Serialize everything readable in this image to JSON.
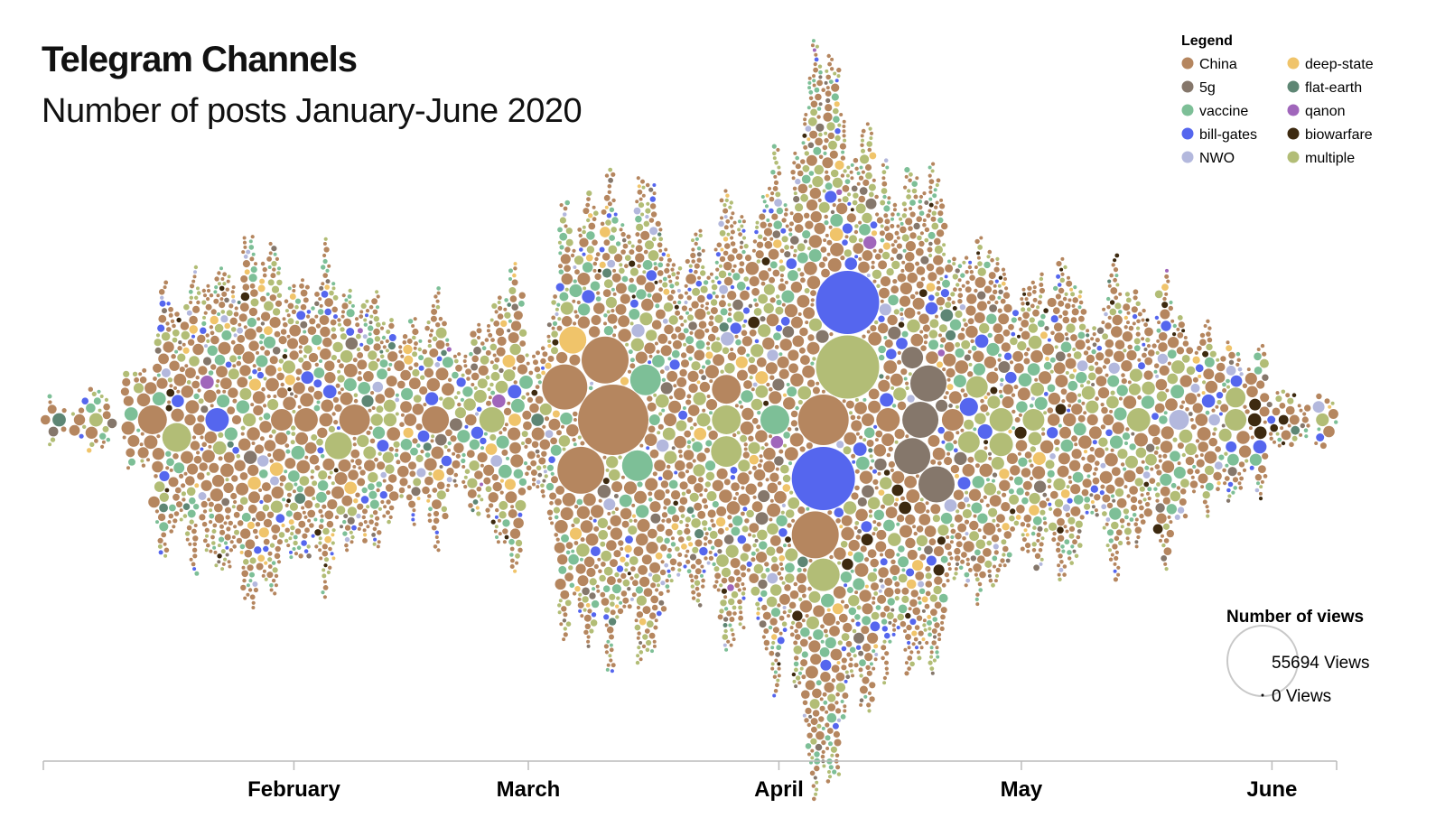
{
  "header": {
    "title": "Telegram Channels",
    "subtitle": "Number of posts January-June 2020"
  },
  "chart_data": {
    "type": "scatter",
    "subtype": "beeswarm",
    "title": "Telegram Channels",
    "subtitle": "Number of posts January-June 2020",
    "x_axis": {
      "type": "date",
      "range": [
        "2020-01-01",
        "2020-06-09"
      ],
      "ticks": [
        {
          "date": "2020-02-01",
          "label": "February"
        },
        {
          "date": "2020-03-01",
          "label": "March"
        },
        {
          "date": "2020-04-01",
          "label": "April"
        },
        {
          "date": "2020-05-01",
          "label": "May"
        },
        {
          "date": "2020-06-01",
          "label": "June"
        }
      ]
    },
    "grid": false,
    "legend": {
      "title": "Legend",
      "placement": "top-right",
      "items": [
        {
          "name": "China",
          "color": "#b5865f"
        },
        {
          "name": "5g",
          "color": "#85776b"
        },
        {
          "name": "vaccine",
          "color": "#7dbf97"
        },
        {
          "name": "bill-gates",
          "color": "#5566ee"
        },
        {
          "name": "NWO",
          "color": "#b3b8dd"
        },
        {
          "name": "deep-state",
          "color": "#f0c46a"
        },
        {
          "name": "flat-earth",
          "color": "#5e8674"
        },
        {
          "name": "qanon",
          "color": "#a066bb"
        },
        {
          "name": "biowarfare",
          "color": "#3d2a10"
        },
        {
          "name": "multiple",
          "color": "#b2bd76"
        }
      ]
    },
    "size_legend": {
      "title": "Number of views",
      "max_views": 55694,
      "max_label": "55694 Views",
      "min_views": 0,
      "min_label": "0 Views"
    },
    "large_posts": [
      [
        "2020-03-11",
        55694,
        "China"
      ],
      [
        "2020-04-06",
        28700,
        "China"
      ],
      [
        "2020-04-06",
        44900,
        "bill-gates"
      ],
      [
        "2020-04-09",
        44900,
        "multiple"
      ],
      [
        "2020-03-10",
        24800,
        "China"
      ],
      [
        "2020-03-07",
        24800,
        "China"
      ],
      [
        "2020-03-05",
        22900,
        "China"
      ],
      [
        "2020-04-09",
        44900,
        "bill-gates"
      ],
      [
        "2020-04-05",
        24800,
        "China"
      ],
      [
        "2020-04-18",
        14600,
        "5g"
      ],
      [
        "2020-04-19",
        14600,
        "5g"
      ],
      [
        "2020-04-17",
        14600,
        "5g"
      ],
      [
        "2020-04-20",
        14600,
        "5g"
      ],
      [
        "2020-02-08",
        10600,
        "China"
      ],
      [
        "2020-01-14",
        9400,
        "China"
      ],
      [
        "2020-02-18",
        8200,
        "China"
      ],
      [
        "2020-03-31",
        9400,
        "vaccine"
      ],
      [
        "2020-03-15",
        10600,
        "vaccine"
      ],
      [
        "2020-03-14",
        10600,
        "vaccine"
      ],
      [
        "2020-03-25",
        9400,
        "multiple"
      ],
      [
        "2020-03-25",
        10600,
        "multiple"
      ],
      [
        "2020-04-06",
        11900,
        "multiple"
      ],
      [
        "2020-01-17",
        9400,
        "multiple"
      ],
      [
        "2020-02-06",
        8200,
        "multiple"
      ],
      [
        "2020-02-25",
        7200,
        "multiple"
      ],
      [
        "2020-03-25",
        9400,
        "China"
      ],
      [
        "2020-03-06",
        8200,
        "deep-state"
      ],
      [
        "2020-05-20",
        4400,
        "NWO"
      ],
      [
        "2020-01-22",
        6200,
        "bill-gates"
      ],
      [
        "2020-05-15",
        6200,
        "multiple"
      ],
      [
        "2020-04-28",
        6200,
        "multiple"
      ],
      [
        "2020-04-28",
        6200,
        "multiple"
      ],
      [
        "2020-02-02",
        6200,
        "China"
      ],
      [
        "2020-01-30",
        5300,
        "China"
      ],
      [
        "2020-04-22",
        5300,
        "China"
      ],
      [
        "2020-04-14",
        6200,
        "China"
      ],
      [
        "2020-04-17",
        5300,
        "5g"
      ],
      [
        "2020-04-24",
        3700,
        "bill-gates"
      ],
      [
        "2020-04-26",
        2400,
        "bill-gates"
      ],
      [
        "2020-05-27",
        5300,
        "multiple"
      ],
      [
        "2020-05-27",
        4400,
        "multiple"
      ],
      [
        "2020-04-24",
        5300,
        "multiple"
      ],
      [
        "2020-04-25",
        5300,
        "multiple"
      ],
      [
        "2020-05-02",
        5300,
        "multiple"
      ]
    ],
    "weekly_posts": {
      "week_start": "2020-01-01",
      "counts": [
        28,
        40,
        210,
        260,
        250,
        210,
        155,
        140,
        170,
        240,
        295,
        315,
        350,
        400,
        365,
        335,
        250,
        210,
        230,
        195,
        125,
        75,
        45
      ]
    },
    "category_share": {
      "China": 0.54,
      "multiple": 0.19,
      "vaccine": 0.12,
      "5g": 0.04,
      "bill-gates": 0.04,
      "deep-state": 0.03,
      "NWO": 0.02,
      "biowarfare": 0.012,
      "flat-earth": 0.005,
      "qanon": 0.003
    }
  }
}
